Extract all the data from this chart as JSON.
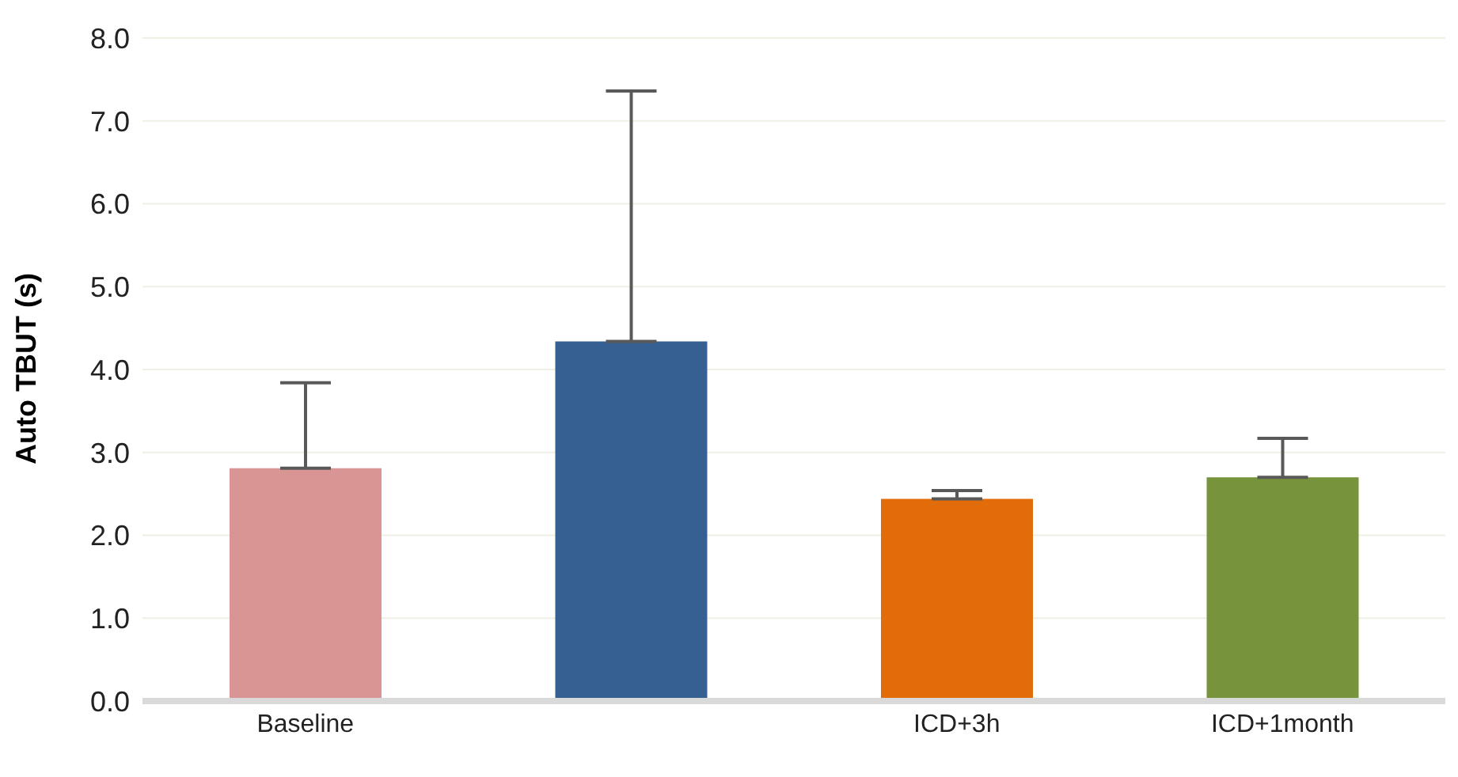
{
  "chart_data": {
    "type": "bar",
    "ylabel": "Auto TBUT (s)",
    "categories": [
      "Baseline",
      null,
      "ICD+3h",
      "ICD+1month"
    ],
    "values": [
      2.81,
      4.34,
      2.44,
      2.7
    ],
    "colors": [
      "#d99594",
      "#366092",
      "#e36c0a",
      "#77933c"
    ],
    "errors": [
      [
        2.81,
        3.84
      ],
      [
        4.34,
        7.36
      ],
      [
        2.44,
        2.54
      ],
      [
        2.7,
        3.17
      ]
    ],
    "ylim": [
      0,
      8
    ],
    "yticks": [
      {
        "value": 0,
        "label": "0.0"
      },
      {
        "value": 1,
        "label": "1.0"
      },
      {
        "value": 2,
        "label": "2.0"
      },
      {
        "value": 3,
        "label": "3.0"
      },
      {
        "value": 4,
        "label": "4.0"
      },
      {
        "value": 5,
        "label": "5.0"
      },
      {
        "value": 6,
        "label": "6.0"
      },
      {
        "value": 7,
        "label": "7.0"
      },
      {
        "value": 8,
        "label": "8.0"
      }
    ],
    "grid": "y"
  }
}
